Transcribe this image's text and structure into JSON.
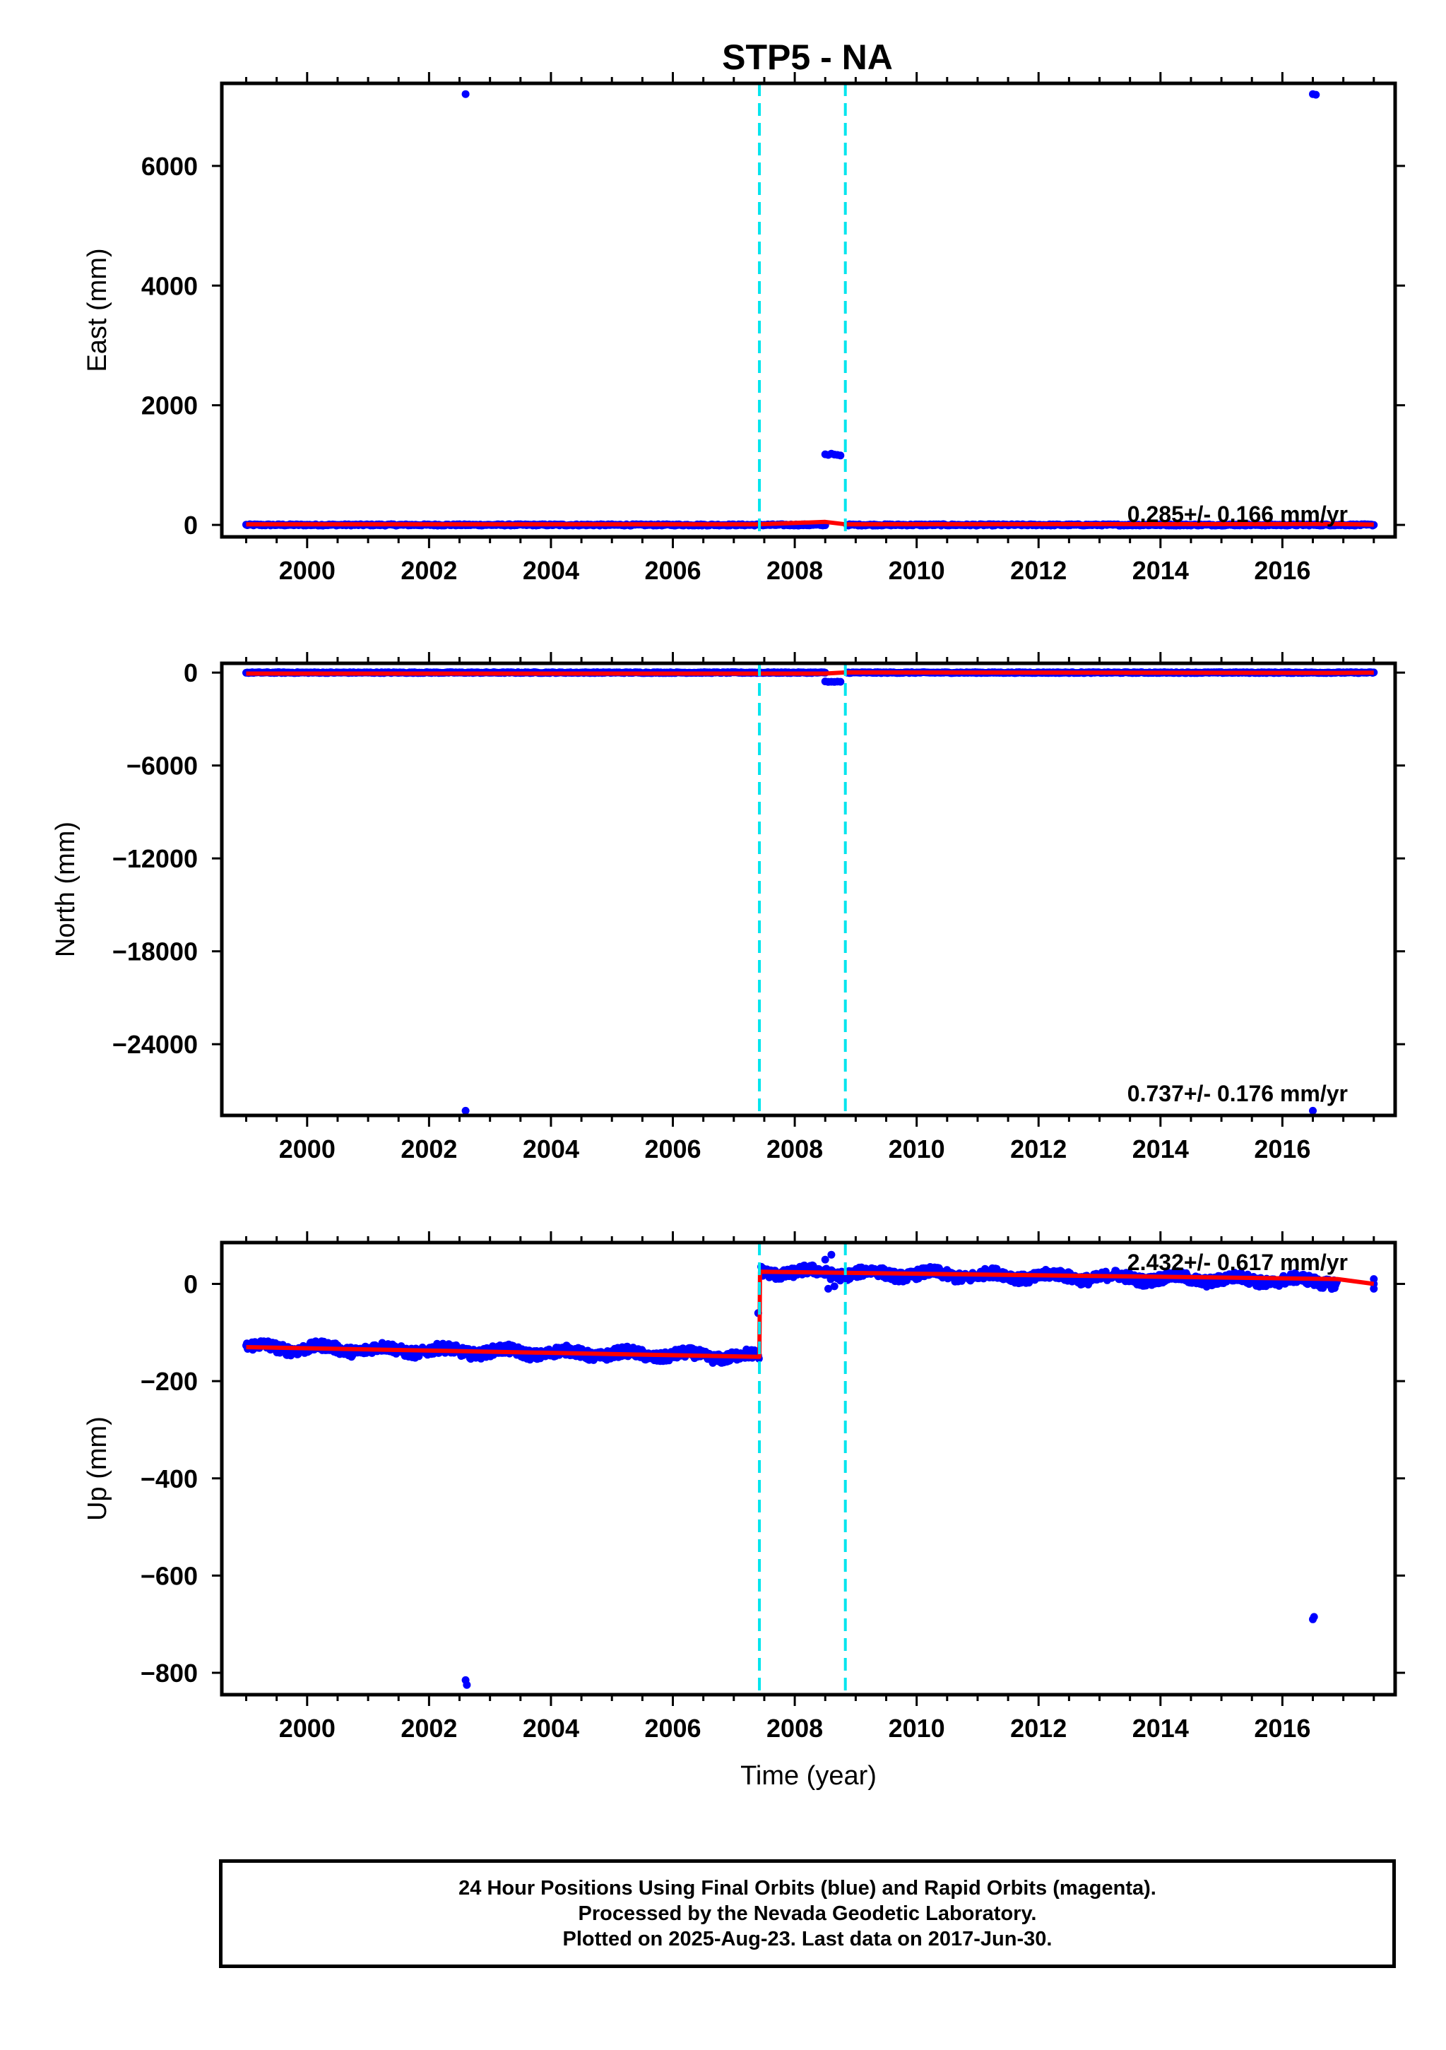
{
  "title": "STP5 - NA",
  "colors": {
    "final_points": "#0000ff",
    "model_line": "#ff0000",
    "event_lines": "#00e5ee",
    "frame": "#000000"
  },
  "footer": {
    "line1": "24 Hour Positions Using Final Orbits (blue) and Rapid Orbits (magenta).",
    "line2": "Processed by the Nevada Geodetic Laboratory.",
    "line3": "Plotted on 2025-Aug-23. Last data on 2017-Jun-30."
  },
  "chart_data": [
    {
      "type": "scatter",
      "ylabel": "East (mm)",
      "xlabel": "",
      "rate_label": "0.285+/- 0.166 mm/yr",
      "xlim": [
        1998.6,
        2017.85
      ],
      "ylim": [
        -200,
        7380
      ],
      "x_ticks": [
        2000,
        2002,
        2004,
        2006,
        2008,
        2010,
        2012,
        2014,
        2016
      ],
      "y_ticks": [
        0,
        2000,
        4000,
        6000
      ],
      "y_tick_labels": [
        "0",
        "2000",
        "4000",
        "6000"
      ],
      "event_lines": [
        2007.42,
        2008.83
      ],
      "baseline": {
        "x_start": 1999.0,
        "x_end": 2017.5,
        "level": 0,
        "noise": 12,
        "gap": [
          2008.5,
          2008.85
        ]
      },
      "outliers": [
        {
          "x": 2002.6,
          "y": 7200
        },
        {
          "x": 2016.5,
          "y": 7200
        },
        {
          "x": 2016.55,
          "y": 7190
        },
        {
          "x": 2008.5,
          "y": 1180
        },
        {
          "x": 2008.55,
          "y": 1170
        },
        {
          "x": 2008.6,
          "y": 1190
        },
        {
          "x": 2008.65,
          "y": 1175
        },
        {
          "x": 2008.7,
          "y": 1170
        },
        {
          "x": 2008.75,
          "y": 1160
        }
      ],
      "model": [
        {
          "x": 1999.0,
          "y": 10
        },
        {
          "x": 2007.4,
          "y": 10
        },
        {
          "x": 2008.5,
          "y": 50
        },
        {
          "x": 2008.83,
          "y": 10
        },
        {
          "x": 2016.9,
          "y": 15
        },
        {
          "x": 2017.5,
          "y": 5
        }
      ]
    },
    {
      "type": "scatter",
      "ylabel": "North (mm)",
      "xlabel": "",
      "rate_label": "0.737+/- 0.176 mm/yr",
      "xlim": [
        1998.6,
        2017.85
      ],
      "ylim": [
        -28600,
        600
      ],
      "x_ticks": [
        2000,
        2002,
        2004,
        2006,
        2008,
        2010,
        2012,
        2014,
        2016
      ],
      "y_ticks": [
        0,
        -6000,
        -12000,
        -18000,
        -24000
      ],
      "y_tick_labels": [
        "0",
        "−6000",
        "−12000",
        "−18000",
        "−24000"
      ],
      "event_lines": [
        2007.42,
        2008.83
      ],
      "baseline": {
        "x_start": 1999.0,
        "x_end": 2017.5,
        "level": 0,
        "noise": 30,
        "gap": [
          2008.5,
          2008.85
        ]
      },
      "outliers": [
        {
          "x": 2002.6,
          "y": -28300
        },
        {
          "x": 2016.5,
          "y": -28300
        },
        {
          "x": 2008.5,
          "y": -570
        },
        {
          "x": 2008.55,
          "y": -600
        },
        {
          "x": 2008.6,
          "y": -590
        },
        {
          "x": 2008.65,
          "y": -600
        },
        {
          "x": 2008.7,
          "y": -580
        },
        {
          "x": 2008.75,
          "y": -590
        }
      ],
      "model": [
        {
          "x": 1999.0,
          "y": -60
        },
        {
          "x": 2007.4,
          "y": -60
        },
        {
          "x": 2008.5,
          "y": -60
        },
        {
          "x": 2008.83,
          "y": 10
        },
        {
          "x": 2016.9,
          "y": -20
        },
        {
          "x": 2017.5,
          "y": 0
        }
      ]
    },
    {
      "type": "scatter",
      "ylabel": "Up (mm)",
      "xlabel": "Time (year)",
      "rate_label": "2.432+/- 0.617 mm/yr",
      "xlim": [
        1998.6,
        2017.85
      ],
      "ylim": [
        -845,
        85
      ],
      "x_ticks": [
        2000,
        2002,
        2004,
        2006,
        2008,
        2010,
        2012,
        2014,
        2016
      ],
      "y_ticks": [
        0,
        -200,
        -400,
        -600,
        -800
      ],
      "y_tick_labels": [
        "0",
        "−200",
        "−400",
        "−600",
        "−800"
      ],
      "event_lines": [
        2007.42,
        2008.83
      ],
      "segments": [
        {
          "x_start": 1999.0,
          "x_end": 2007.42,
          "y_start": -130,
          "y_end": -150,
          "noise": 10
        },
        {
          "x_start": 2007.45,
          "x_end": 2016.9,
          "y_start": 25,
          "y_end": 5,
          "noise": 10
        }
      ],
      "outliers": [
        {
          "x": 2002.6,
          "y": -815
        },
        {
          "x": 2002.62,
          "y": -825
        },
        {
          "x": 2016.5,
          "y": -690
        },
        {
          "x": 2016.52,
          "y": -685
        },
        {
          "x": 2007.4,
          "y": -60
        },
        {
          "x": 2008.5,
          "y": 50
        },
        {
          "x": 2008.6,
          "y": 60
        },
        {
          "x": 2008.55,
          "y": -10
        },
        {
          "x": 2008.65,
          "y": -5
        },
        {
          "x": 2017.5,
          "y": 0
        },
        {
          "x": 2017.5,
          "y": -10
        },
        {
          "x": 2017.5,
          "y": 10
        }
      ],
      "model": [
        {
          "x": 1999.0,
          "y": -130
        },
        {
          "x": 2007.42,
          "y": -150
        },
        {
          "x": 2007.43,
          "y": 25
        },
        {
          "x": 2016.9,
          "y": 10
        },
        {
          "x": 2017.5,
          "y": 0
        }
      ]
    }
  ]
}
